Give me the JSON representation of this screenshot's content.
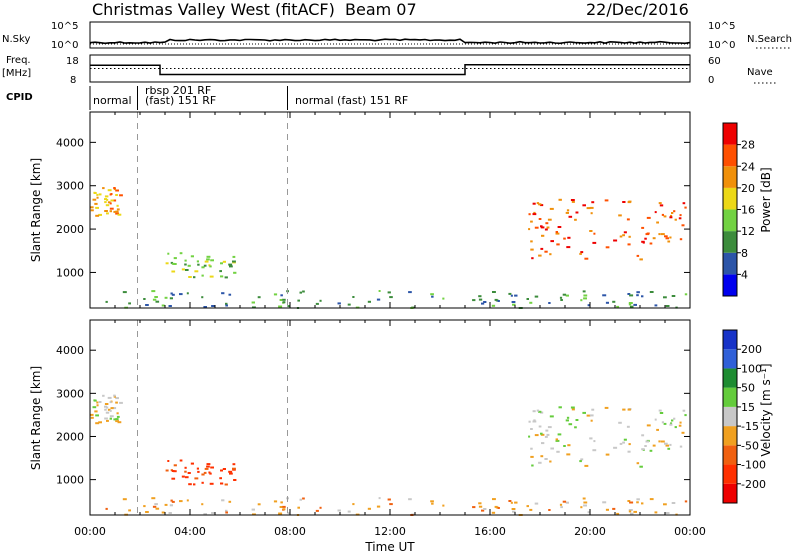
{
  "header": {
    "station": "Christmas Valley West (fitACF)",
    "beam": "Beam 07",
    "date": "22/Dec/2016"
  },
  "panels": {
    "nsky_label": "N.Sky",
    "nsearch_label": "N.Search",
    "noise_ticks": [
      "10^5",
      "10^0"
    ],
    "freq_label_1": "Freq.",
    "freq_label_2": "[MHz]",
    "freq_ticks": [
      "18",
      "8"
    ],
    "nave_label": "Nave",
    "nave_ticks": [
      "60",
      "0"
    ],
    "cpid_label": "CPID",
    "cpid_segments": [
      "normal",
      "rbsp 201 RF",
      "(fast) 151 RF",
      "normal (fast) 151 RF"
    ]
  },
  "x_axis": {
    "label": "Time UT",
    "ticks": [
      "00:00",
      "04:00",
      "08:00",
      "12:00",
      "16:00",
      "20:00",
      "00:00"
    ]
  },
  "power_panel": {
    "ylabel": "Slant Range [km]",
    "yticks": [
      "4000",
      "3000",
      "2000",
      "1000"
    ],
    "cbar_label": "Power [dB]",
    "cbar_ticks": [
      "28",
      "24",
      "20",
      "16",
      "12",
      "8",
      "4"
    ]
  },
  "velocity_panel": {
    "ylabel": "Slant Range [km]",
    "yticks": [
      "4000",
      "3000",
      "2000",
      "1000"
    ],
    "cbar_label": "Velocity [m s⁻¹]",
    "cbar_ticks": [
      "200",
      "100",
      "50",
      "15",
      "-15",
      "-50",
      "-100",
      "-200"
    ]
  },
  "chart_data": {
    "type": "heatmap",
    "x_unit": "hours UT",
    "xlim": [
      0,
      24
    ],
    "ylim_km": [
      180,
      4700
    ],
    "freq_mhz": {
      "ylim": [
        8,
        18
      ],
      "segments": [
        [
          0,
          2.8,
          14.2
        ],
        [
          2.8,
          15.0,
          10.8
        ],
        [
          15.0,
          24,
          14.4
        ]
      ]
    },
    "nave": {
      "ylim": [
        0,
        60
      ],
      "value": 30
    },
    "cpid_boundaries_h": [
      1.9,
      7.9
    ],
    "scatter_regions": [
      {
        "name": "near-range E-region",
        "t": [
          0.0,
          24.0
        ],
        "r": [
          200,
          600
        ],
        "power_db": 12,
        "velocity": -30
      },
      {
        "name": "evening far-range",
        "t": [
          0.0,
          1.2
        ],
        "r": [
          2300,
          3000
        ],
        "power_db": 24,
        "velocity": 0
      },
      {
        "name": "morning patches",
        "t": [
          3.0,
          5.8
        ],
        "r": [
          900,
          1500
        ],
        "power_db": 16,
        "velocity": -120
      },
      {
        "name": "dusk high-power band",
        "t": [
          17.5,
          23.9
        ],
        "r": [
          1300,
          2700
        ],
        "power_db": 28,
        "velocity": 0
      }
    ],
    "power_colors": [
      "#0000ee",
      "#2c55a8",
      "#3c8c3c",
      "#72d242",
      "#ecd817",
      "#f0900a",
      "#ff5000",
      "#ee0000"
    ],
    "velocity_colors": [
      "#1733c8",
      "#3060d8",
      "#1e8c32",
      "#64cc3c",
      "#c8c8c8",
      "#f0a020",
      "#f06010",
      "#ff3000",
      "#ee0000"
    ]
  }
}
